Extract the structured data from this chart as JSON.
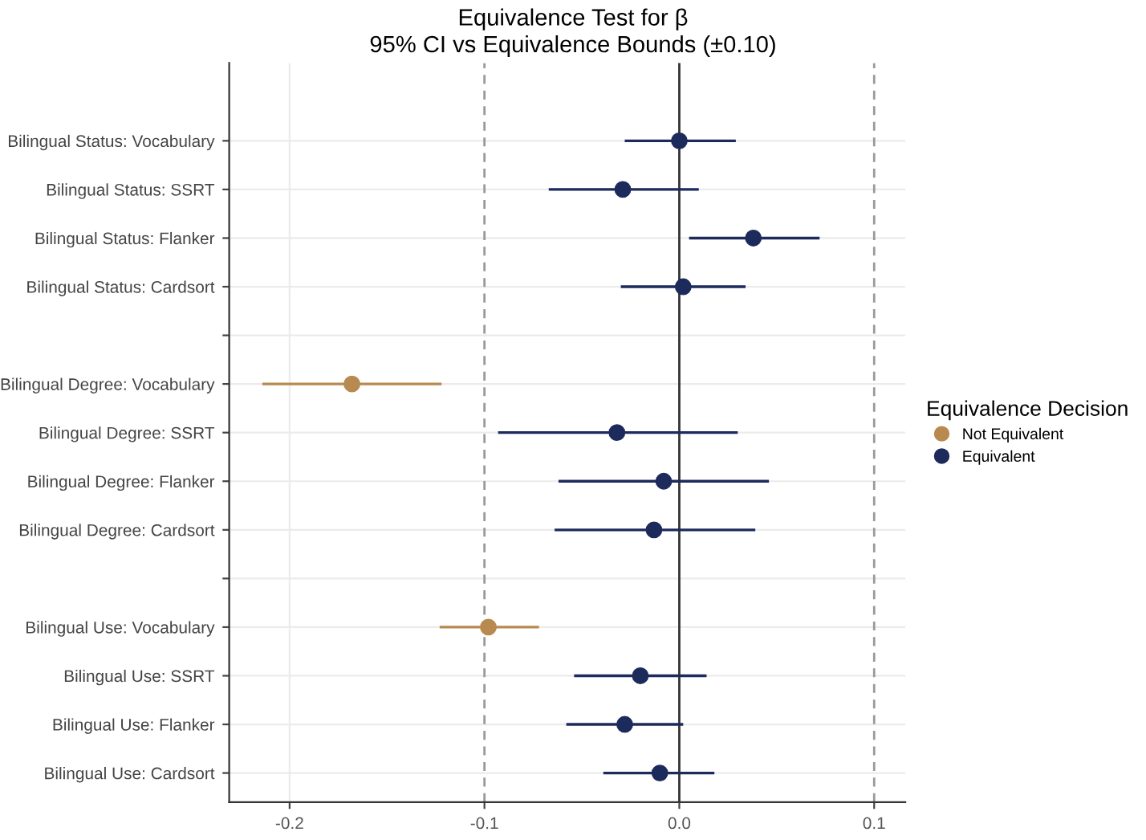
{
  "chart_data": {
    "type": "scatter",
    "orientation": "horizontal",
    "title": "Equivalence Test for β",
    "subtitle": "95% CI vs Equivalence Bounds (±0.10)",
    "categories": [
      "Bilingual Status: Vocabulary",
      "Bilingual Status: SSRT",
      "Bilingual Status: Flanker",
      "Bilingual Status: Cardsort",
      null,
      "Bilingual Degree: Vocabulary",
      "Bilingual Degree: SSRT",
      "Bilingual Degree: Flanker",
      "Bilingual Degree: Cardsort",
      null,
      "Bilingual Use: Vocabulary",
      "Bilingual Use: SSRT",
      "Bilingual Use: Flanker",
      "Bilingual Use: Cardsort"
    ],
    "series": [
      {
        "name": "Not Equivalent",
        "color": "#b88a4f",
        "values": [
          null,
          null,
          null,
          null,
          null,
          -0.168,
          null,
          null,
          null,
          null,
          -0.098,
          null,
          null,
          null
        ],
        "errors": [
          null,
          null,
          null,
          null,
          null,
          [
            -0.214,
            -0.122
          ],
          null,
          null,
          null,
          null,
          [
            -0.123,
            -0.072
          ],
          null,
          null,
          null
        ]
      },
      {
        "name": "Equivalent",
        "color": "#1c2a5c",
        "values": [
          0.0,
          -0.029,
          0.038,
          0.002,
          null,
          null,
          -0.032,
          -0.008,
          -0.013,
          null,
          null,
          -0.02,
          -0.028,
          -0.01
        ],
        "errors": [
          [
            -0.028,
            0.029
          ],
          [
            -0.067,
            0.01
          ],
          [
            0.005,
            0.072
          ],
          [
            -0.03,
            0.034
          ],
          null,
          null,
          [
            -0.093,
            0.03
          ],
          [
            -0.062,
            0.046
          ],
          [
            -0.064,
            0.039
          ],
          null,
          null,
          [
            -0.054,
            0.014
          ],
          [
            -0.058,
            0.002
          ],
          [
            -0.039,
            0.018
          ]
        ]
      }
    ],
    "xlim": [
      -0.231,
      0.116
    ],
    "xticks": [
      -0.2,
      -0.1,
      {
        "value": 0.0,
        "label": "0.0"
      },
      0.1
    ],
    "ref_lines": [
      {
        "axis": "x",
        "value": -0.1,
        "color": "#999999",
        "line_style": "dashed"
      },
      {
        "axis": "x",
        "value": 0.1,
        "color": "#999999",
        "line_style": "dashed"
      },
      {
        "axis": "x",
        "value": 0.0,
        "color": "#333333",
        "line_style": "solid"
      }
    ],
    "legend_title": "Equivalence Decision",
    "legend": "right",
    "grid": true,
    "marker": "circle"
  }
}
